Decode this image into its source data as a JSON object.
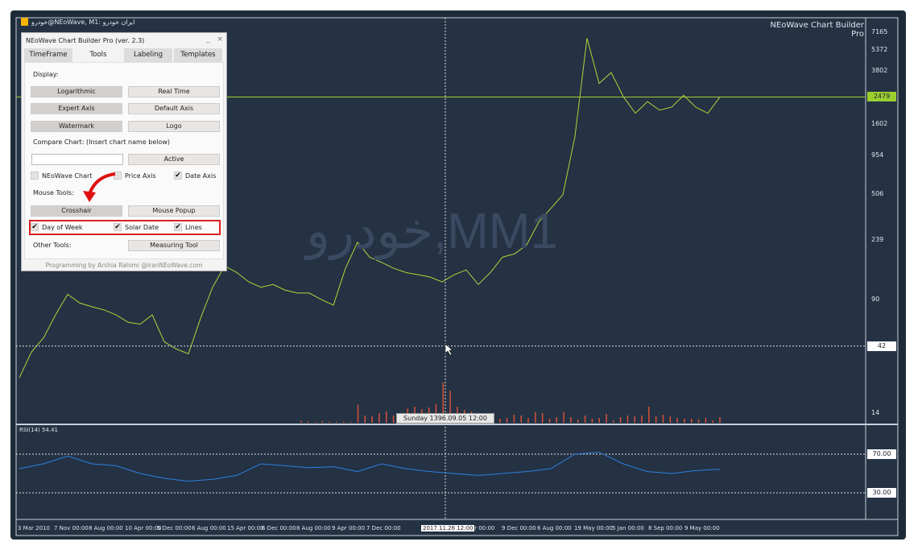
{
  "window": {
    "title": "خودرو@NEoWave, M1: ایران خودرو",
    "brand": "NEoWave Chart Builder Pro",
    "watermark": "خودرو,MM1"
  },
  "panel": {
    "title": "NEoWave Chart Builder Pro (ver. 2.3)",
    "minimize": "_",
    "close": "×",
    "tabs": [
      "TimeFrame",
      "Tools",
      "Labeling",
      "Templates"
    ],
    "active_tab": "Tools",
    "display_label": "Display:",
    "buttons": {
      "logarithmic": "Logarithmic",
      "real_time": "Real Time",
      "expert_axis": "Expert Axis",
      "default_axis": "Default Axis",
      "watermark": "Watermark",
      "logo": "Logo",
      "active": "Active",
      "crosshair": "Crosshair",
      "mouse_popup": "Mouse Popup",
      "measuring_tool": "Measuring Tool"
    },
    "compare_label": "Compare Chart: (Insert chart name below)",
    "compare_value": "",
    "checks": [
      {
        "label": "NEoWave Chart",
        "checked": false
      },
      {
        "label": "Price Axis",
        "checked": false
      },
      {
        "label": "Date Axis",
        "checked": true
      }
    ],
    "mouse_label": "Mouse Tools:",
    "mouse_checks": [
      {
        "label": "Day of Week",
        "checked": true
      },
      {
        "label": "Solar Date",
        "checked": true
      },
      {
        "label": "Lines",
        "checked": true
      }
    ],
    "other_label": "Other Tools:",
    "footer": "Programming by Arshia Rahimi @IranNEoWave.com"
  },
  "chart_data": {
    "type": "line",
    "scale": "log",
    "price_ticks": [
      "7165",
      "5372",
      "3802",
      "1602",
      "954",
      "506",
      "239",
      "90",
      "14"
    ],
    "current_price": "2479",
    "crosshair_price": "42",
    "crosshair_date": "Sunday 1396.09.05 12:00",
    "crosshair_axis_date": "2017.11.26 12:00",
    "x_ticks": [
      "3 Mar 2010",
      "7 Nov 00:00",
      "8 Aug 00:00",
      "10 Apr 00:00",
      "5 Dec 00:00",
      "6 Aug 00:00",
      "15 Apr 00:00",
      "6 Dec 00:00",
      "8 Aug 00:00",
      "9 Apr 00:00",
      "7 Dec 00:00",
      "Apr 00:00",
      "9 Dec 00:00",
      "6 Aug 00:00",
      "19 May 00:00",
      "5 Jan 00:00",
      "8 Sep 00:00",
      "9 May 00:00"
    ],
    "price": [
      25,
      38,
      48,
      70,
      98,
      85,
      80,
      76,
      70,
      62,
      60,
      70,
      45,
      40,
      37,
      66,
      110,
      156,
      140,
      120,
      110,
      115,
      105,
      100,
      100,
      90,
      82,
      150,
      230,
      180,
      165,
      150,
      140,
      135,
      130,
      120,
      135,
      146,
      115,
      140,
      180,
      190,
      220,
      320,
      400,
      500,
      1300,
      6500,
      3100,
      3700,
      2500,
      1900,
      2300,
      2000,
      2100,
      2550,
      2100,
      1900,
      2479
    ],
    "volume_relative": [
      5,
      3,
      2,
      4,
      3,
      2,
      3,
      2,
      45,
      18,
      16,
      24,
      28,
      18,
      14,
      35,
      40,
      34,
      38,
      46,
      100,
      80,
      40,
      32,
      28,
      18,
      8,
      24,
      10,
      12,
      20,
      18,
      12,
      26,
      24,
      10,
      14,
      26,
      14,
      8,
      18,
      10,
      12,
      22,
      6,
      14,
      18,
      16,
      18,
      40,
      16,
      20,
      16,
      12,
      10,
      10,
      8,
      12,
      6,
      14
    ],
    "rsi": {
      "label": "RSI(14) 54.41",
      "levels": [
        "70.00",
        "30.00"
      ],
      "values": [
        55,
        60,
        68,
        60,
        58,
        50,
        45,
        42,
        44,
        48,
        60,
        58,
        56,
        57,
        52,
        60,
        55,
        52,
        50,
        48,
        50,
        52,
        55,
        70,
        72,
        60,
        52,
        50,
        53,
        54.41
      ]
    },
    "colors": {
      "price": "#b5d33a",
      "rsi": "#2f7fe0",
      "volume": "#d9503a",
      "background": "#243244",
      "current": "#9ccf2e"
    }
  }
}
